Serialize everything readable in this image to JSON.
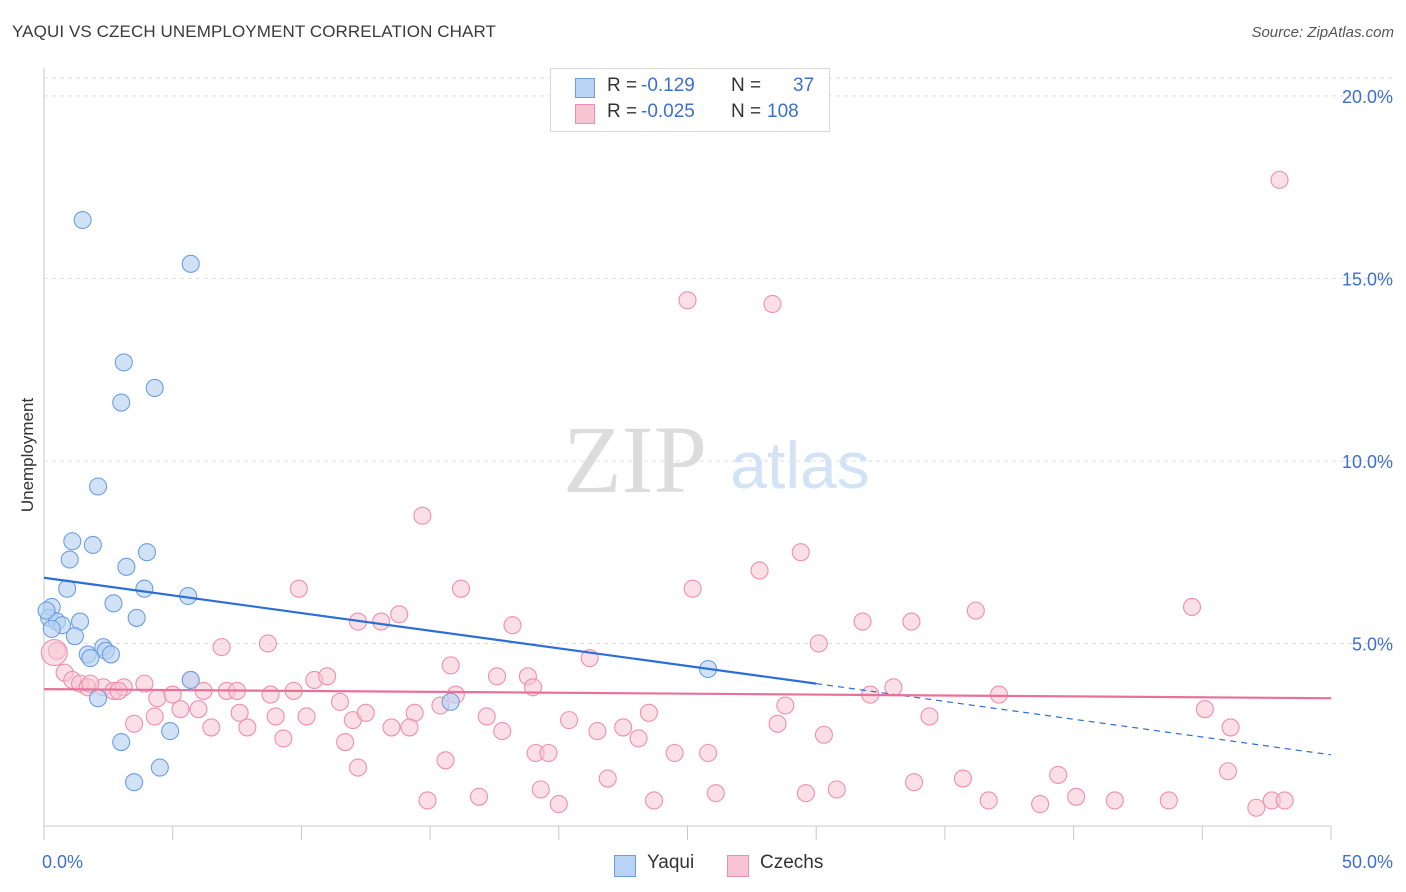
{
  "header": {
    "title": "YAQUI VS CZECH UNEMPLOYMENT CORRELATION CHART",
    "source": "Source: ZipAtlas.com"
  },
  "watermark": {
    "zip": "ZIP",
    "atlas": "atlas"
  },
  "legend": {
    "r_label": "R =",
    "n_label": "N =",
    "rows": [
      {
        "r": "-0.129",
        "n": "37"
      },
      {
        "r": "-0.025",
        "n": "108"
      }
    ]
  },
  "colors": {
    "yaqui_fill": "#b8d3f3",
    "yaqui_stroke": "#6b9fe0",
    "yaqui_line": "#2b6fd6",
    "czech_fill": "#f8c4d4",
    "czech_stroke": "#ee8fae",
    "czech_line": "#e8719a",
    "grid": "#dddddd",
    "tick_label": "#3d6fce"
  },
  "chart_data": {
    "type": "scatter",
    "title": "YAQUI VS CZECH UNEMPLOYMENT CORRELATION CHART",
    "xlabel": "",
    "ylabel": "Unemployment",
    "xlim": [
      0,
      50
    ],
    "ylim": [
      0,
      20.6
    ],
    "x_tick_labels": [
      "0.0%",
      "50.0%"
    ],
    "y_ticks": [
      5,
      10,
      15,
      20
    ],
    "y_tick_labels": [
      "5.0%",
      "10.0%",
      "15.0%",
      "20.0%"
    ],
    "grid": true,
    "legend_position": "top-center",
    "series": [
      {
        "name": "Yaqui",
        "r": -0.129,
        "n": 37,
        "trend": {
          "x": [
            0,
            30
          ],
          "y": [
            6.8,
            3.9
          ],
          "dashed_extension_to_x": 50,
          "dashed_end_y": 1.95
        },
        "points": [
          [
            1.5,
            16.6
          ],
          [
            5.7,
            15.4
          ],
          [
            3.1,
            12.7
          ],
          [
            4.3,
            12.0
          ],
          [
            3.0,
            11.6
          ],
          [
            2.1,
            9.3
          ],
          [
            1.1,
            7.8
          ],
          [
            1.9,
            7.7
          ],
          [
            4.0,
            7.5
          ],
          [
            1.0,
            7.3
          ],
          [
            3.2,
            7.1
          ],
          [
            0.9,
            6.5
          ],
          [
            3.9,
            6.5
          ],
          [
            5.6,
            6.3
          ],
          [
            0.3,
            6.0
          ],
          [
            2.7,
            6.1
          ],
          [
            0.2,
            5.7
          ],
          [
            0.5,
            5.6
          ],
          [
            1.4,
            5.6
          ],
          [
            3.6,
            5.7
          ],
          [
            0.7,
            5.5
          ],
          [
            0.3,
            5.4
          ],
          [
            1.2,
            5.2
          ],
          [
            2.3,
            4.9
          ],
          [
            2.4,
            4.8
          ],
          [
            1.7,
            4.7
          ],
          [
            1.8,
            4.6
          ],
          [
            2.6,
            4.7
          ],
          [
            5.7,
            4.0
          ],
          [
            2.1,
            3.5
          ],
          [
            15.8,
            3.4
          ],
          [
            4.9,
            2.6
          ],
          [
            3.0,
            2.3
          ],
          [
            25.8,
            4.3
          ],
          [
            4.5,
            1.6
          ],
          [
            3.5,
            1.2
          ],
          [
            0.1,
            5.9
          ]
        ]
      },
      {
        "name": "Czechs",
        "r": -0.025,
        "n": 108,
        "trend": {
          "x": [
            0,
            50
          ],
          "y": [
            3.75,
            3.5
          ]
        },
        "points": [
          [
            48.0,
            17.7
          ],
          [
            25.0,
            14.4
          ],
          [
            28.3,
            14.3
          ],
          [
            14.7,
            8.5
          ],
          [
            29.4,
            7.5
          ],
          [
            27.8,
            7.0
          ],
          [
            9.9,
            6.5
          ],
          [
            16.2,
            6.5
          ],
          [
            25.2,
            6.5
          ],
          [
            44.6,
            6.0
          ],
          [
            36.2,
            5.9
          ],
          [
            13.8,
            5.8
          ],
          [
            13.1,
            5.6
          ],
          [
            12.2,
            5.6
          ],
          [
            18.2,
            5.5
          ],
          [
            31.8,
            5.6
          ],
          [
            33.7,
            5.6
          ],
          [
            30.1,
            5.0
          ],
          [
            8.7,
            5.0
          ],
          [
            6.9,
            4.9
          ],
          [
            21.2,
            4.6
          ],
          [
            15.8,
            4.4
          ],
          [
            0.5,
            4.8
          ],
          [
            0.8,
            4.2
          ],
          [
            1.1,
            4.0
          ],
          [
            1.4,
            3.9
          ],
          [
            1.7,
            3.8
          ],
          [
            2.3,
            3.8
          ],
          [
            2.7,
            3.7
          ],
          [
            3.1,
            3.8
          ],
          [
            3.9,
            3.9
          ],
          [
            4.4,
            3.5
          ],
          [
            5.0,
            3.6
          ],
          [
            5.7,
            4.0
          ],
          [
            6.2,
            3.7
          ],
          [
            7.1,
            3.7
          ],
          [
            7.5,
            3.7
          ],
          [
            8.8,
            3.6
          ],
          [
            9.7,
            3.7
          ],
          [
            10.5,
            4.0
          ],
          [
            11.0,
            4.1
          ],
          [
            17.6,
            4.1
          ],
          [
            18.8,
            4.1
          ],
          [
            19.0,
            3.8
          ],
          [
            16.0,
            3.6
          ],
          [
            11.5,
            3.4
          ],
          [
            15.4,
            3.3
          ],
          [
            33.0,
            3.8
          ],
          [
            37.1,
            3.6
          ],
          [
            32.1,
            3.6
          ],
          [
            4.3,
            3.0
          ],
          [
            5.3,
            3.2
          ],
          [
            6.0,
            3.2
          ],
          [
            7.6,
            3.1
          ],
          [
            9.0,
            3.0
          ],
          [
            10.2,
            3.0
          ],
          [
            12.0,
            2.9
          ],
          [
            12.5,
            3.1
          ],
          [
            14.4,
            3.1
          ],
          [
            17.2,
            3.0
          ],
          [
            20.4,
            2.9
          ],
          [
            23.5,
            3.1
          ],
          [
            28.8,
            3.3
          ],
          [
            34.4,
            3.0
          ],
          [
            45.1,
            3.2
          ],
          [
            3.5,
            2.8
          ],
          [
            6.5,
            2.7
          ],
          [
            7.9,
            2.7
          ],
          [
            9.3,
            2.4
          ],
          [
            11.7,
            2.3
          ],
          [
            13.5,
            2.7
          ],
          [
            14.2,
            2.7
          ],
          [
            17.8,
            2.6
          ],
          [
            21.5,
            2.6
          ],
          [
            22.5,
            2.7
          ],
          [
            23.1,
            2.4
          ],
          [
            28.5,
            2.8
          ],
          [
            30.3,
            2.5
          ],
          [
            46.1,
            2.7
          ],
          [
            19.1,
            2.0
          ],
          [
            19.6,
            2.0
          ],
          [
            15.6,
            1.8
          ],
          [
            24.5,
            2.0
          ],
          [
            25.8,
            2.0
          ],
          [
            12.2,
            1.6
          ],
          [
            21.9,
            1.3
          ],
          [
            19.3,
            1.0
          ],
          [
            29.6,
            0.9
          ],
          [
            30.8,
            1.0
          ],
          [
            33.8,
            1.2
          ],
          [
            35.7,
            1.3
          ],
          [
            39.4,
            1.4
          ],
          [
            40.1,
            0.8
          ],
          [
            43.7,
            0.7
          ],
          [
            46.0,
            1.5
          ],
          [
            14.9,
            0.7
          ],
          [
            16.9,
            0.8
          ],
          [
            20.0,
            0.6
          ],
          [
            23.7,
            0.7
          ],
          [
            26.1,
            0.9
          ],
          [
            36.7,
            0.7
          ],
          [
            38.7,
            0.6
          ],
          [
            41.6,
            0.7
          ],
          [
            47.7,
            0.7
          ],
          [
            48.2,
            0.7
          ],
          [
            47.1,
            0.5
          ],
          [
            1.8,
            3.9
          ],
          [
            2.9,
            3.7
          ]
        ]
      }
    ]
  }
}
